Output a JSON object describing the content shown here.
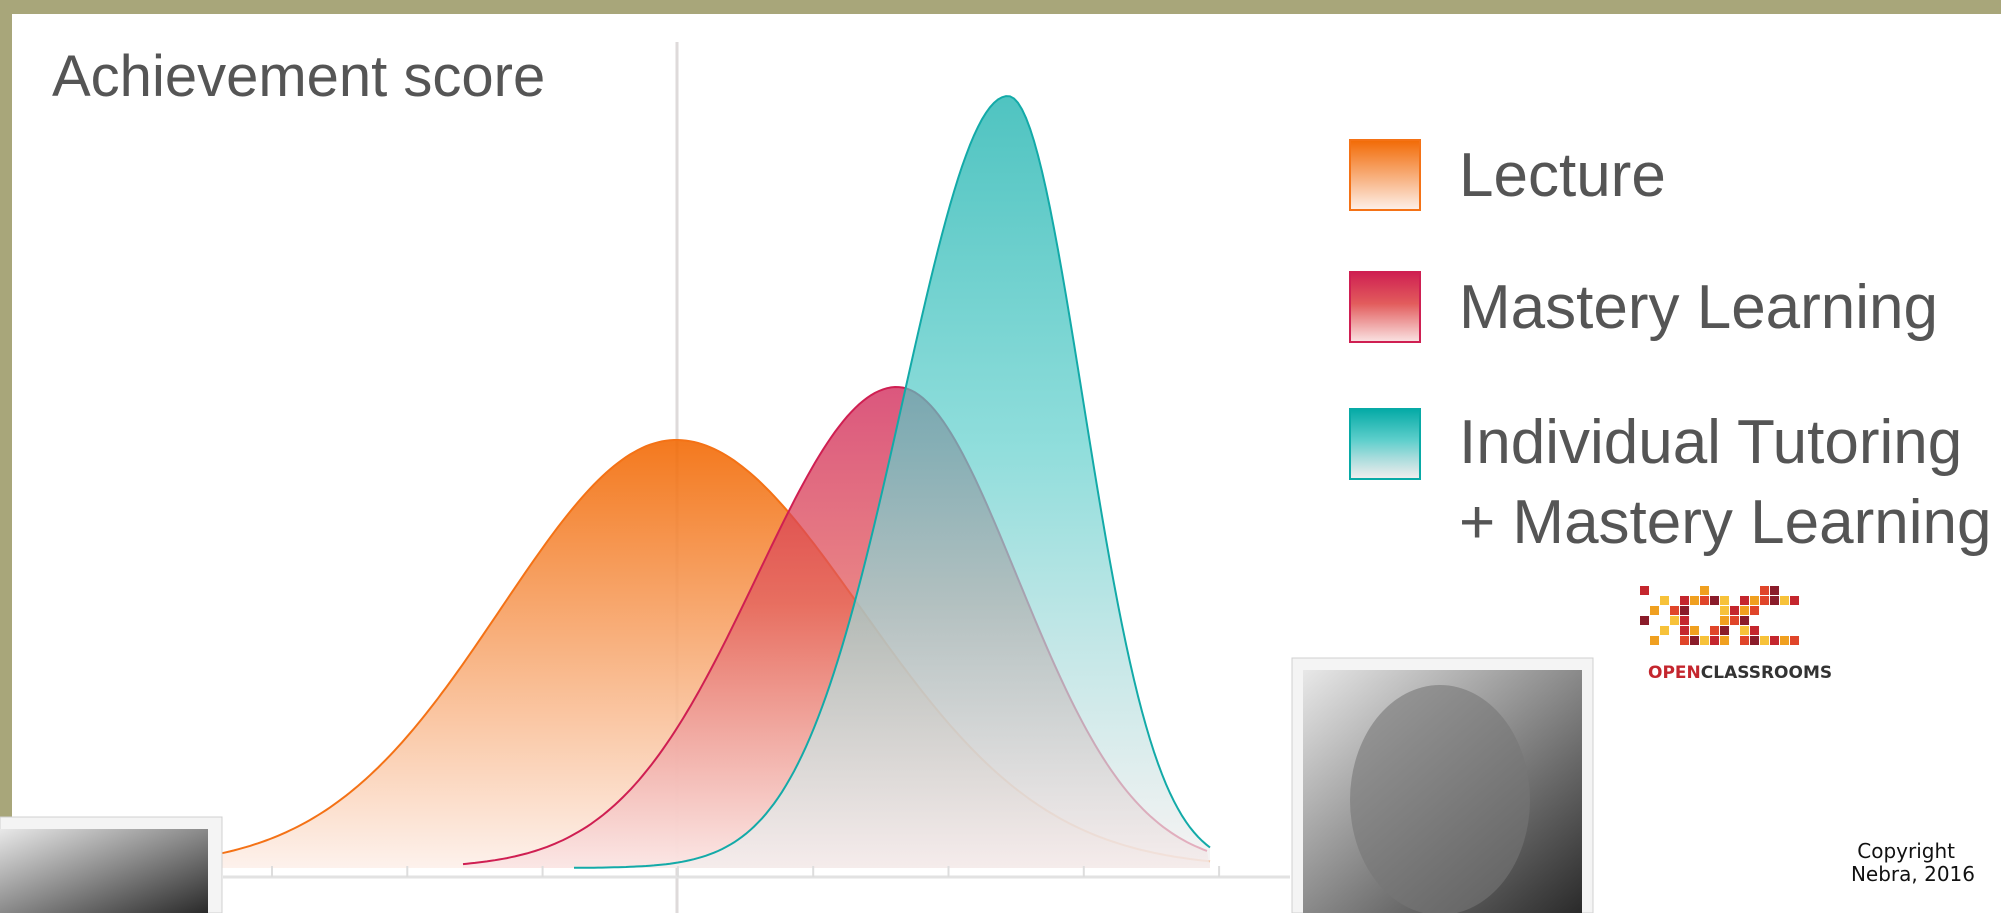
{
  "title": "Achievement score",
  "legend": [
    {
      "lines": [
        "Lecture"
      ]
    },
    {
      "lines": [
        "Mastery Learning"
      ]
    },
    {
      "lines": [
        "Individual Tutoring",
        "+ Mastery Learning"
      ]
    }
  ],
  "logo": {
    "text_open": "OPEN",
    "text_rest": "CLASSROOMS"
  },
  "copyright": [
    "Copyright",
    "Nebra, 2016"
  ]
}
